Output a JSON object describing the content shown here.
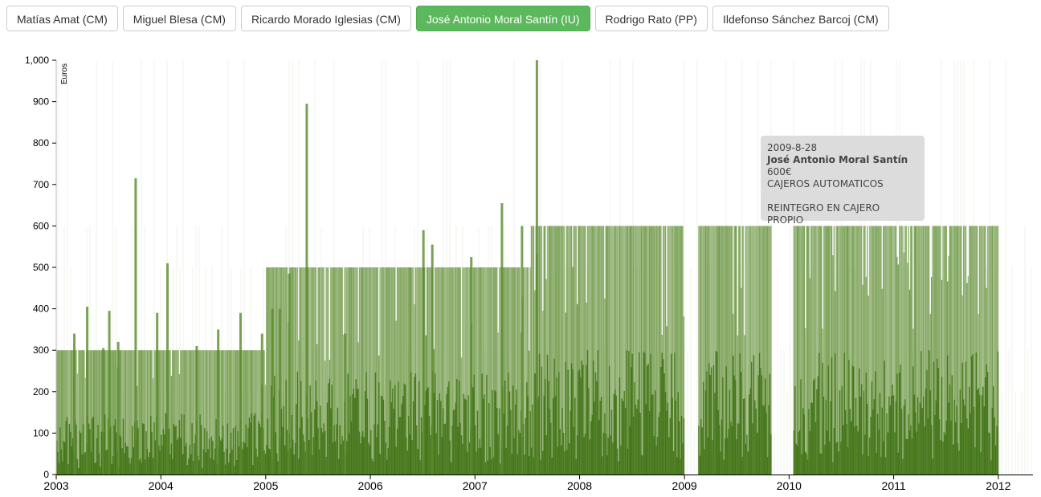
{
  "tabs": [
    {
      "label": "Matías Amat (CM)",
      "active": false
    },
    {
      "label": "Miguel Blesa (CM)",
      "active": false
    },
    {
      "label": "Ricardo Morado Iglesias (CM)",
      "active": false
    },
    {
      "label": "José Antonio Moral Santín (IU)",
      "active": true
    },
    {
      "label": "Rodrigo Rato (PP)",
      "active": false
    },
    {
      "label": "Ildefonso Sánchez Barcoj (CM)",
      "active": false
    }
  ],
  "colors": {
    "active_tab": "#5cb85c",
    "bar_dark": "#3c6e0f",
    "bar_mid": "#5a8a2c",
    "background_bars": "#e8eedf"
  },
  "tooltip": {
    "date": "2009-8-28",
    "name": "José Antonio Moral Santín",
    "amount": "600€",
    "category": "CAJEROS AUTOMATICOS",
    "description": "REINTEGRO EN CAJERO PROPIO"
  },
  "chart_data": {
    "type": "bar",
    "ylabel": "Euros",
    "ylim": [
      0,
      1000
    ],
    "yticks": [
      "0",
      "100",
      "200",
      "300",
      "400",
      "500",
      "600",
      "700",
      "800",
      "900",
      "1,000"
    ],
    "xlim": [
      "2003-01-01",
      "2012-05-01"
    ],
    "xticks": [
      "2003",
      "2004",
      "2005",
      "2006",
      "2007",
      "2008",
      "2009",
      "2010",
      "2011",
      "2012"
    ],
    "steady_levels": [
      {
        "from": "2003-01-01",
        "to": "2005-01-01",
        "value": 300
      },
      {
        "from": "2005-01-01",
        "to": "2007-07-15",
        "value": 500
      },
      {
        "from": "2007-07-15",
        "to": "2012-01-01",
        "value": 600
      }
    ],
    "gaps": [
      {
        "from": "2009-01-01",
        "to": "2009-02-15"
      },
      {
        "from": "2009-11-01",
        "to": "2010-01-15"
      }
    ],
    "spikes": [
      {
        "x": "2003-03-01",
        "y": 340
      },
      {
        "x": "2003-04-15",
        "y": 405
      },
      {
        "x": "2003-06-10",
        "y": 305
      },
      {
        "x": "2003-07-01",
        "y": 395
      },
      {
        "x": "2003-08-01",
        "y": 320
      },
      {
        "x": "2003-10-01",
        "y": 715
      },
      {
        "x": "2003-12-15",
        "y": 390
      },
      {
        "x": "2004-01-20",
        "y": 510
      },
      {
        "x": "2004-05-01",
        "y": 310
      },
      {
        "x": "2004-07-15",
        "y": 350
      },
      {
        "x": "2004-10-01",
        "y": 390
      },
      {
        "x": "2004-12-15",
        "y": 340
      },
      {
        "x": "2005-01-20",
        "y": 400
      },
      {
        "x": "2005-02-15",
        "y": 400
      },
      {
        "x": "2005-03-20",
        "y": 485
      },
      {
        "x": "2005-05-20",
        "y": 895
      },
      {
        "x": "2005-10-01",
        "y": 340
      },
      {
        "x": "2006-07-01",
        "y": 590
      },
      {
        "x": "2006-08-01",
        "y": 555
      },
      {
        "x": "2006-12-15",
        "y": 525
      },
      {
        "x": "2007-04-01",
        "y": 655
      },
      {
        "x": "2007-06-10",
        "y": 600
      },
      {
        "x": "2007-08-01",
        "y": 1000
      }
    ]
  }
}
